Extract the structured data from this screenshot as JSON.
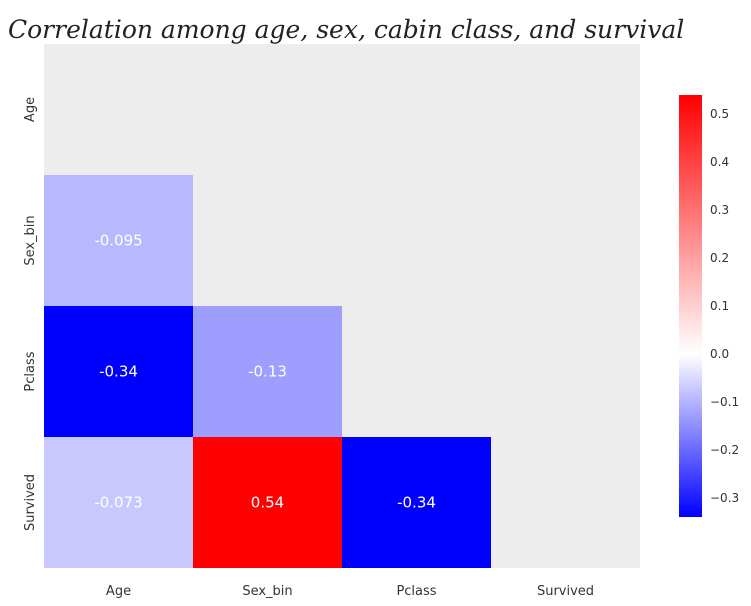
{
  "chart_data": {
    "type": "heatmap",
    "title": "Correlation among age, sex, cabin class, and survival",
    "x_labels": [
      "Age",
      "Sex_bin",
      "Pclass",
      "Survived"
    ],
    "y_labels": [
      "Age",
      "Sex_bin",
      "Pclass",
      "Survived"
    ],
    "matrix": [
      [
        null,
        null,
        null,
        null
      ],
      [
        -0.095,
        null,
        null,
        null
      ],
      [
        -0.34,
        -0.13,
        null,
        null
      ],
      [
        -0.073,
        0.54,
        -0.34,
        null
      ]
    ],
    "cell_labels": [
      [
        null,
        null,
        null,
        null
      ],
      [
        "-0.095",
        null,
        null,
        null
      ],
      [
        "-0.34",
        "-0.13",
        null,
        null
      ],
      [
        "-0.073",
        "0.54",
        "-0.34",
        null
      ]
    ],
    "mask": "upper-triangle-including-diagonal",
    "colormap": "bwr",
    "vmin": -0.34,
    "vmax": 0.54,
    "colorbar_ticks": [
      0.5,
      0.4,
      0.3,
      0.2,
      0.1,
      0.0,
      -0.1,
      -0.2,
      -0.3
    ],
    "colorbar_tick_labels": [
      "0.5",
      "0.4",
      "0.3",
      "0.2",
      "0.1",
      "0.0",
      "−0.1",
      "−0.2",
      "−0.3"
    ],
    "colors": {
      "blue": "#0000ff",
      "white": "#ffffff",
      "red": "#ff0000",
      "masked_background": "#ededed"
    }
  }
}
